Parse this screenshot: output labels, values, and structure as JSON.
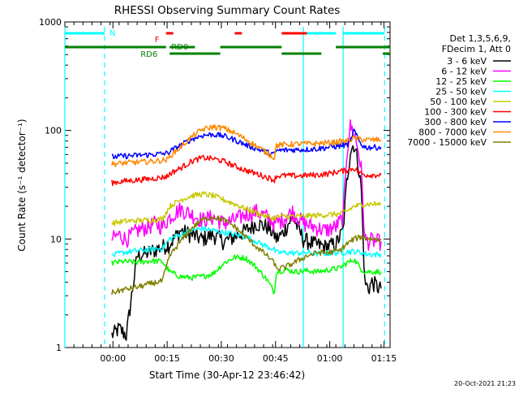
{
  "chart_data": {
    "type": "line",
    "title": "RHESSI Observing Summary Count Rates",
    "xlabel": "Start Time (30-Apr-12 23:46:42)",
    "ylabel": "Count Rate (s⁻¹ detector⁻¹)",
    "y_scale": "log",
    "ylim": [
      1,
      1000
    ],
    "y_ticks": [
      {
        "value": 1,
        "label": "1"
      },
      {
        "value": 10,
        "label": "10"
      },
      {
        "value": 100,
        "label": "100"
      },
      {
        "value": 1000,
        "label": "1000"
      }
    ],
    "x_unit": "minutes since 23:46:42",
    "xlim": [
      0,
      90
    ],
    "x_ticks": [
      {
        "value": 13.3,
        "label": "00:00"
      },
      {
        "value": 28.3,
        "label": "00:15"
      },
      {
        "value": 43.3,
        "label": "00:30"
      },
      {
        "value": 58.3,
        "label": "00:45"
      },
      {
        "value": 73.3,
        "label": "01:00"
      },
      {
        "value": 88.3,
        "label": "01:15"
      }
    ],
    "legend_header": [
      "Det 1,3,5,6,9,",
      "FDecim 1, Att 0"
    ],
    "legend_position": "right",
    "grid": false,
    "series": [
      {
        "name": "3 - 6 keV",
        "color": "#000000",
        "x": [
          13,
          15,
          17,
          20,
          23,
          25,
          27,
          29,
          32,
          35,
          38,
          41,
          44,
          47,
          50,
          53,
          56,
          58,
          58.5,
          60,
          63,
          66,
          69,
          72,
          75,
          77,
          78,
          79,
          80,
          81,
          82,
          83,
          84,
          85,
          86,
          87,
          87.5
        ],
        "y": [
          1.3,
          1.5,
          1.3,
          7,
          7.5,
          8,
          8.5,
          9,
          12,
          11,
          10,
          11,
          9.5,
          10.5,
          12,
          14,
          13,
          11,
          10,
          11,
          16,
          10,
          9,
          8.5,
          9,
          12,
          33,
          65,
          75,
          55,
          30,
          4,
          3.5,
          4,
          3.8,
          3.5,
          3.5
        ]
      },
      {
        "name": "6 - 12 keV",
        "color": "#ff00ff",
        "x": [
          13,
          15,
          17,
          20,
          23,
          25,
          27,
          29,
          32,
          35,
          38,
          41,
          44,
          47,
          50,
          53,
          56,
          58,
          58.5,
          60,
          63,
          66,
          69,
          72,
          75,
          77,
          78,
          79,
          80,
          81,
          82,
          83,
          84,
          85,
          86,
          87,
          87.5
        ],
        "y": [
          10,
          11,
          10,
          12,
          13,
          14,
          13,
          16,
          19,
          17,
          15,
          16,
          14,
          15,
          17,
          18,
          16,
          14,
          14,
          15,
          18,
          14,
          13,
          12,
          13,
          16,
          60,
          110,
          95,
          70,
          45,
          10,
          9.5,
          9.8,
          9.5,
          9.5,
          9.5
        ]
      },
      {
        "name": "12 - 25 keV",
        "color": "#00ff00",
        "x": [
          13,
          16,
          20,
          24,
          27,
          29,
          32,
          35,
          38,
          41,
          44,
          47,
          50,
          53,
          56,
          58,
          58.5,
          61,
          64,
          67,
          70,
          73,
          76,
          78,
          80,
          82,
          83,
          85,
          87.5
        ],
        "y": [
          6,
          6.2,
          6.1,
          6.3,
          6.2,
          5,
          4.5,
          4.4,
          4.5,
          4.8,
          6,
          6.8,
          6.7,
          5.5,
          4.2,
          3.2,
          5,
          5.2,
          5,
          5.1,
          5,
          5.2,
          5.4,
          6,
          6.5,
          5.3,
          5,
          5,
          5
        ]
      },
      {
        "name": "25 - 50 keV",
        "color": "#00ffff",
        "x": [
          13,
          16,
          20,
          24,
          27,
          29,
          32,
          35,
          38,
          41,
          44,
          47,
          50,
          53,
          56,
          58,
          58.5,
          61,
          64,
          67,
          70,
          73,
          76,
          78,
          80,
          82,
          83,
          85,
          87.5
        ],
        "y": [
          7,
          7.5,
          7.8,
          8,
          8.2,
          10,
          11,
          12,
          12.5,
          12,
          11.5,
          11,
          10.5,
          9.5,
          8.5,
          8,
          7.5,
          7.5,
          7.4,
          7.5,
          7.3,
          7.4,
          7.5,
          7.6,
          7.7,
          7.5,
          7.3,
          7.2,
          7.2
        ]
      },
      {
        "name": "50 - 100 keV",
        "color": "#c8c800",
        "x": [
          13,
          16,
          20,
          24,
          27,
          29,
          32,
          35,
          38,
          41,
          44,
          47,
          50,
          53,
          56,
          58,
          58.5,
          61,
          64,
          67,
          70,
          73,
          76,
          78,
          80,
          82,
          83,
          85,
          87.5
        ],
        "y": [
          14,
          14.5,
          14.8,
          15,
          15.3,
          20,
          23,
          25,
          26,
          25,
          23,
          21,
          19,
          17.5,
          16,
          15.5,
          16,
          16.2,
          16.1,
          16.3,
          16.5,
          16.8,
          17,
          18,
          20,
          20.5,
          21,
          21,
          21
        ]
      },
      {
        "name": "100 - 300 keV",
        "color": "#ff0000",
        "x": [
          13,
          16,
          20,
          24,
          27,
          28.5,
          29,
          32,
          35,
          38,
          41,
          44,
          47,
          50,
          53,
          56,
          58,
          58.5,
          61,
          64,
          67,
          70,
          73,
          76,
          78,
          80,
          82,
          83,
          85,
          87.5
        ],
        "y": [
          33,
          34,
          35,
          36,
          37,
          38,
          40,
          45,
          52,
          56,
          55,
          52,
          47,
          43,
          40,
          37,
          35,
          38,
          38.5,
          38.2,
          38.6,
          39,
          40,
          42,
          43,
          45,
          40,
          39,
          39,
          39
        ]
      },
      {
        "name": "300 - 800 keV",
        "color": "#0000ff",
        "x": [
          13,
          16,
          20,
          24,
          27,
          28.5,
          29,
          32,
          35,
          38,
          41,
          44,
          47,
          50,
          53,
          56,
          58,
          58.5,
          61,
          64,
          67,
          70,
          73,
          76,
          78,
          79,
          80,
          81,
          82,
          83,
          85,
          87.5
        ],
        "y": [
          57,
          58,
          59,
          60,
          61,
          62,
          64,
          73,
          83,
          90,
          92,
          89,
          82,
          74,
          68,
          63,
          60,
          65,
          66,
          66.5,
          67,
          68,
          70,
          72,
          74,
          78,
          100,
          85,
          75,
          70,
          70,
          70
        ]
      },
      {
        "name": "800 - 7000 keV",
        "color": "#ff8800",
        "x": [
          13,
          16,
          20,
          24,
          27,
          28.5,
          29,
          32,
          35,
          38,
          41,
          44,
          47,
          50,
          53,
          56,
          58,
          58.5,
          61,
          64,
          67,
          70,
          73,
          76,
          78,
          80,
          82,
          83,
          85,
          87.5
        ],
        "y": [
          49,
          50,
          51,
          52,
          53,
          54,
          58,
          70,
          87,
          102,
          108,
          105,
          95,
          83,
          72,
          62,
          56,
          73,
          74,
          75,
          75.5,
          76,
          77,
          79,
          80,
          85,
          83,
          82,
          82,
          82
        ]
      },
      {
        "name": "7000 - 15000 keV",
        "color": "#808000",
        "x": [
          13,
          16,
          20,
          24,
          27,
          29,
          32,
          35,
          38,
          41,
          44,
          47,
          50,
          53,
          56,
          58,
          58.5,
          61,
          64,
          67,
          70,
          73,
          76,
          78,
          80,
          82,
          83,
          85,
          87.5
        ],
        "y": [
          3.2,
          3.4,
          3.6,
          3.9,
          4.1,
          7,
          9.5,
          12.5,
          15,
          16,
          15,
          13,
          10.5,
          8.5,
          7,
          6,
          5.3,
          5.5,
          6.2,
          7,
          7.5,
          7.5,
          7.8,
          9,
          10,
          10.5,
          10.2,
          10,
          10
        ]
      }
    ],
    "annotations": {
      "N_label": "N",
      "F_label": "F",
      "RD0_label": "RD0",
      "RD6_label": "RD6"
    },
    "status_bars": [
      {
        "name": "N",
        "color": "#00ffff",
        "row": "top",
        "segments": [
          [
            0,
            11
          ],
          [
            66,
            75
          ],
          [
            77,
            88.5
          ]
        ]
      },
      {
        "name": "F",
        "color": "#ff0000",
        "row": "top",
        "segments": [
          [
            28,
            30
          ],
          [
            47,
            49
          ],
          [
            60,
            67
          ]
        ]
      },
      {
        "name": "RD0",
        "color": "#008000",
        "row": "mid",
        "segments": [
          [
            0,
            28
          ],
          [
            29,
            36
          ],
          [
            43,
            60
          ],
          [
            75,
            90
          ]
        ]
      },
      {
        "name": "RD6",
        "color": "#008000",
        "row": "low",
        "segments": [
          [
            29,
            43
          ],
          [
            60,
            71
          ],
          [
            88,
            90
          ]
        ]
      }
    ],
    "vertical_lines": [
      {
        "x": 0,
        "color": "#00ffff",
        "style": "solid"
      },
      {
        "x": 11,
        "color": "#00ffff",
        "style": "dashed"
      },
      {
        "x": 66,
        "color": "#00ffff",
        "style": "solid"
      },
      {
        "x": 77,
        "color": "#00ffff",
        "style": "solid"
      },
      {
        "x": 88.5,
        "color": "#00ffff",
        "style": "dashed"
      }
    ]
  },
  "footer": {
    "date_stamp": "20-Oct-2021 21:23"
  }
}
